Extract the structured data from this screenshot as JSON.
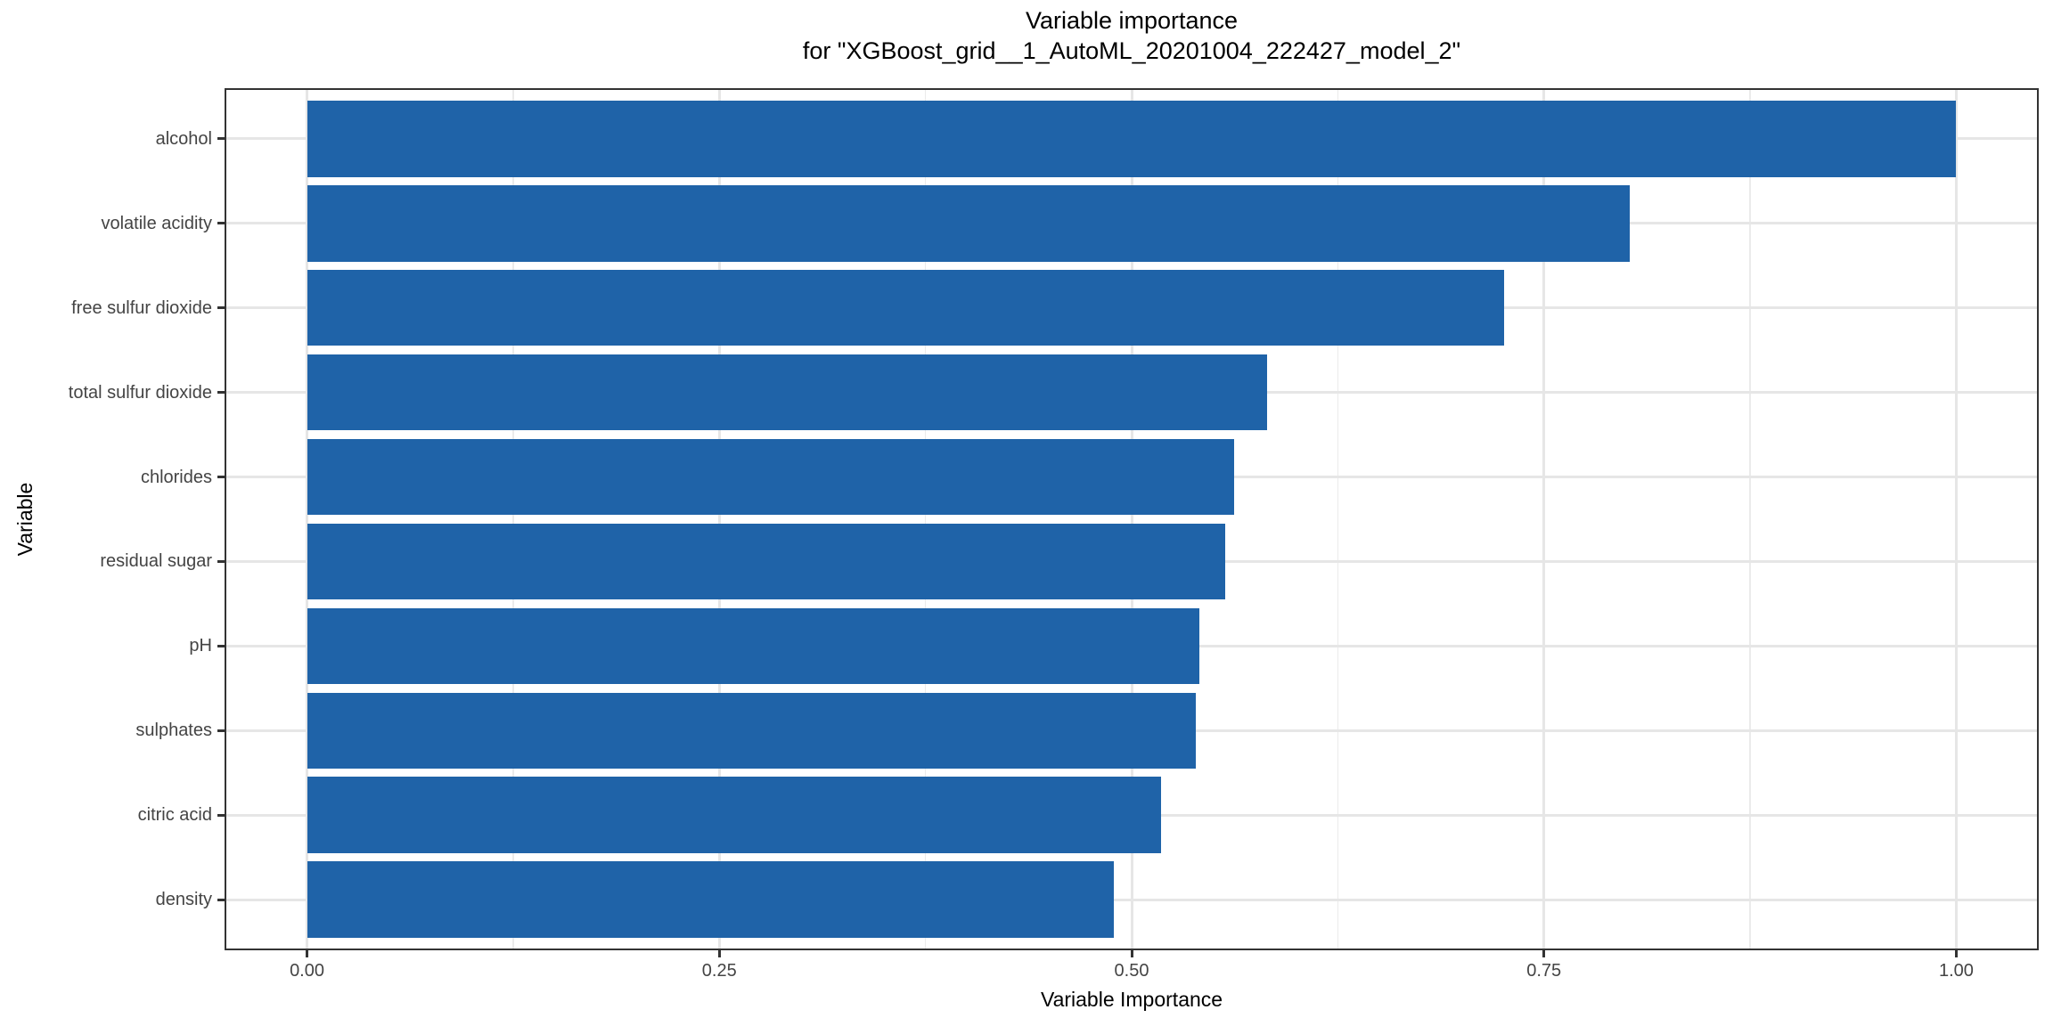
{
  "chart": {
    "title": "Variable importance",
    "subtitle": "for \"XGBoost_grid__1_AutoML_20201004_222427_model_2\"",
    "xlabel": "Variable Importance",
    "ylabel": "Variable"
  },
  "chart_data": {
    "type": "bar",
    "orientation": "horizontal",
    "title": "Variable importance",
    "subtitle": "for \"XGBoost_grid__1_AutoML_20201004_222427_model_2\"",
    "xlabel": "Variable Importance",
    "ylabel": "Variable",
    "categories": [
      "alcohol",
      "volatile acidity",
      "free sulfur dioxide",
      "total sulfur dioxide",
      "chlorides",
      "residual sugar",
      "pH",
      "sulphates",
      "citric acid",
      "density"
    ],
    "values": [
      1.0,
      0.802,
      0.726,
      0.582,
      0.562,
      0.557,
      0.541,
      0.539,
      0.518,
      0.489
    ],
    "xlim": [
      -0.05,
      1.05
    ],
    "x_tick_labels": [
      "0.00",
      "0.25",
      "0.50",
      "0.75",
      "1.00"
    ],
    "x_tick_values": [
      0.0,
      0.25,
      0.5,
      0.75,
      1.0
    ],
    "x_minor_values": [
      0.125,
      0.375,
      0.625,
      0.875
    ],
    "grid": true,
    "legend": false,
    "band_expand": 0.6,
    "bar_width_frac": 0.9,
    "colors": {
      "bar": "#1F63A8",
      "grid_major": "#E6E6E6",
      "grid_minor": "#EBEBEB",
      "panel_border": "#333333",
      "tick_mark": "#333333",
      "tick_label": "#444444",
      "title": "#000000"
    }
  }
}
